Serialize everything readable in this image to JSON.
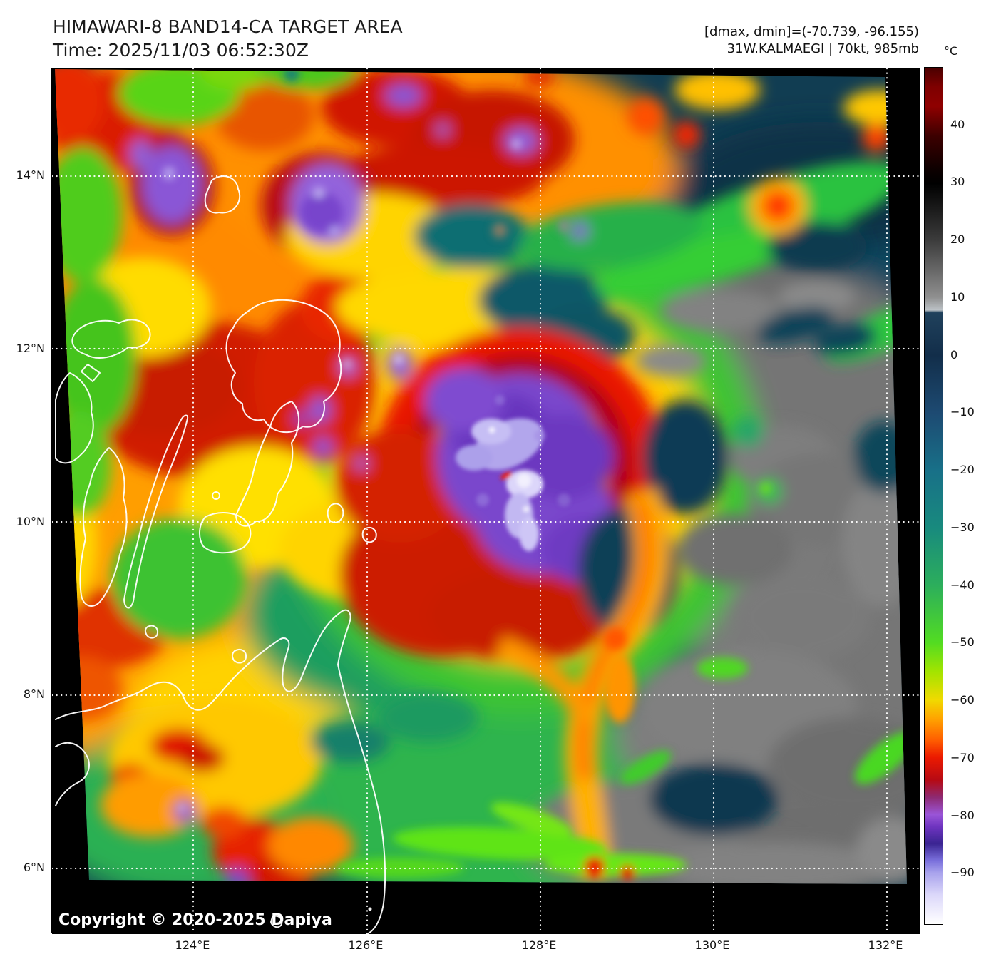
{
  "header": {
    "title": "HIMAWARI-8 BAND14-CA TARGET AREA",
    "time_line": "Time: 2025/11/03 06:52:30Z"
  },
  "annotations": {
    "range_line": "[dmax, dmin]=(-70.739, -96.155)",
    "storm_line": "31W.KALMAEGI | 70kt, 985mb"
  },
  "colorbar": {
    "unit": "°C",
    "scale_top_value": 50,
    "scale_bottom_value": -99,
    "ticks": [
      {
        "label": "40",
        "value": 40
      },
      {
        "label": "30",
        "value": 30
      },
      {
        "label": "20",
        "value": 20
      },
      {
        "label": "10",
        "value": 10
      },
      {
        "label": "0",
        "value": 0
      },
      {
        "label": "−10",
        "value": -10
      },
      {
        "label": "−20",
        "value": -20
      },
      {
        "label": "−30",
        "value": -30
      },
      {
        "label": "−40",
        "value": -40
      },
      {
        "label": "−50",
        "value": -50
      },
      {
        "label": "−60",
        "value": -60
      },
      {
        "label": "−70",
        "value": -70
      },
      {
        "label": "−80",
        "value": -80
      },
      {
        "label": "−90",
        "value": -90
      }
    ],
    "palette_stops": [
      {
        "pct": 0,
        "color": "#4a0000"
      },
      {
        "pct": 2.2,
        "color": "#7e0000"
      },
      {
        "pct": 4.5,
        "color": "#8f0000"
      },
      {
        "pct": 8,
        "color": "#3c0000"
      },
      {
        "pct": 12,
        "color": "#0c0000"
      },
      {
        "pct": 13.5,
        "color": "#000000"
      },
      {
        "pct": 20,
        "color": "#3a3a3a"
      },
      {
        "pct": 26.8,
        "color": "#8f8f8f"
      },
      {
        "pct": 28.3,
        "color": "#bcc2c6"
      },
      {
        "pct": 28.6,
        "color": "#20415c"
      },
      {
        "pct": 33.6,
        "color": "#122e4a"
      },
      {
        "pct": 40.3,
        "color": "#1d4a72"
      },
      {
        "pct": 47,
        "color": "#187088"
      },
      {
        "pct": 53.7,
        "color": "#188a7e"
      },
      {
        "pct": 60.4,
        "color": "#2cae5c"
      },
      {
        "pct": 67.1,
        "color": "#52dc22"
      },
      {
        "pct": 70.5,
        "color": "#a2e400"
      },
      {
        "pct": 73.8,
        "color": "#f0da00"
      },
      {
        "pct": 76,
        "color": "#ffa400"
      },
      {
        "pct": 78.5,
        "color": "#ff5e00"
      },
      {
        "pct": 80.5,
        "color": "#ec1a00"
      },
      {
        "pct": 83.2,
        "color": "#b60a14"
      },
      {
        "pct": 85.2,
        "color": "#8e2a72"
      },
      {
        "pct": 87.2,
        "color": "#9a55d8"
      },
      {
        "pct": 88.6,
        "color": "#6f34c0"
      },
      {
        "pct": 90.6,
        "color": "#3a2492"
      },
      {
        "pct": 92.6,
        "color": "#7a70dc"
      },
      {
        "pct": 94,
        "color": "#a8a2ec"
      },
      {
        "pct": 96.6,
        "color": "#dcd8fa"
      },
      {
        "pct": 100,
        "color": "#ffffff"
      }
    ]
  },
  "axes": {
    "lat_ticks": [
      {
        "label": "14°N",
        "lat": 14
      },
      {
        "label": "12°N",
        "lat": 12
      },
      {
        "label": "10°N",
        "lat": 10
      },
      {
        "label": "8°N",
        "lat": 8
      },
      {
        "label": "6°N",
        "lat": 6
      }
    ],
    "lon_ticks": [
      {
        "label": "124°E",
        "lon": 124
      },
      {
        "label": "126°E",
        "lon": 126
      },
      {
        "label": "128°E",
        "lon": 128
      },
      {
        "label": "130°E",
        "lon": 130
      },
      {
        "label": "132°E",
        "lon": 132
      }
    ]
  },
  "map_overlay": {
    "copyright": "Copyright © 2020-2025 Dapiya"
  }
}
